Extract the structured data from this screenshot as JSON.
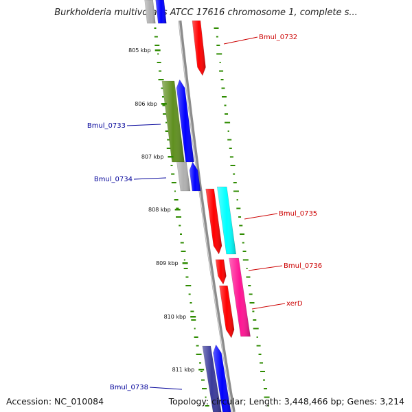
{
  "title": "Burkholderia multivorans ATCC 17616 chromosome 1, complete s...",
  "ticks": [
    "805 kbp",
    "806 kbp",
    "807 kbp",
    "808 kbp",
    "809 kbp",
    "810 kbp",
    "811 kbp"
  ],
  "genes": [
    {
      "label": "Bmul_0732",
      "color": "#ff0000",
      "strand": "reverse"
    },
    {
      "label": "Bmul_0733",
      "color": "#0000ff",
      "strand": "forward"
    },
    {
      "label": "Bmul_0734",
      "color": "#0000ff",
      "strand": "forward"
    },
    {
      "label": "Bmul_0735",
      "color": "#ff0000",
      "strand": "reverse"
    },
    {
      "label": "Bmul_0736",
      "color": "#ff0000",
      "strand": "reverse"
    },
    {
      "label": "xerD",
      "color": "#ff0000",
      "strand": "reverse"
    },
    {
      "label": "Bmul_0738",
      "color": "#0000ff",
      "strand": "forward"
    }
  ],
  "track_colors": {
    "cog_green": "#5f8f1f",
    "cog_gray": "#b0b0b0",
    "cog_cyan": "#00ffff",
    "cog_pink": "#ff1493",
    "cog_navy": "#3a3a9a",
    "backbone": "#8c8c8c",
    "gc_dots": "#2e8b00"
  },
  "footer": {
    "accession": "Accession: NC_010084",
    "topology": "Topology: circular; Length: 3,448,466 bp; Genes: 3,214"
  }
}
